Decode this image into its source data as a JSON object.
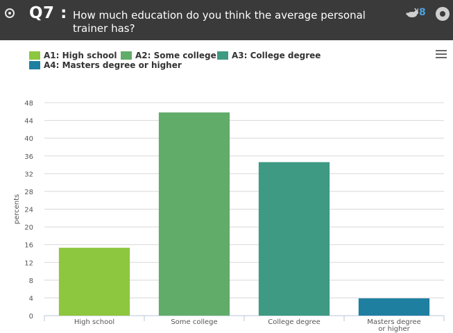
{
  "question": {
    "number": "Q7 :",
    "text": "How much education do you think the average personal trainer has?"
  },
  "header": {
    "respondent_count": "8",
    "icons": [
      "radio-icon",
      "rabbit-icon",
      "settings-icon"
    ]
  },
  "colors": {
    "header_bg": "#3a3a3a",
    "count_text": "#4aa3df",
    "series": [
      "#8dc63f",
      "#62ac6a",
      "#3e9a82",
      "#1f7fa0"
    ]
  },
  "legend": {
    "items": [
      {
        "label": "A1: High school",
        "color": "#8dc63f"
      },
      {
        "label": "A2: Some college",
        "color": "#62ac6a"
      },
      {
        "label": "A3: College degree",
        "color": "#3e9a82"
      },
      {
        "label": "A4: Masters degree or higher",
        "color": "#1f7fa0"
      }
    ],
    "menu_icon": "menu-icon"
  },
  "chart_data": {
    "type": "bar",
    "categories": [
      "High school",
      "Some college",
      "College degree",
      "Masters degree or higher"
    ],
    "category_lines": [
      [
        "High school"
      ],
      [
        "Some college"
      ],
      [
        "College degree"
      ],
      [
        "Masters degree",
        "or higher"
      ]
    ],
    "values": [
      15.3,
      45.8,
      34.6,
      3.9
    ],
    "colors": [
      "#8dc63f",
      "#62ac6a",
      "#3e9a82",
      "#1f7fa0"
    ],
    "ylabel": "percents",
    "xlabel": "",
    "ylim": [
      0,
      48
    ],
    "yticks": [
      0,
      4,
      8,
      12,
      16,
      20,
      24,
      28,
      32,
      36,
      40,
      44,
      48
    ],
    "grid": true,
    "legend_position": "top-left"
  }
}
